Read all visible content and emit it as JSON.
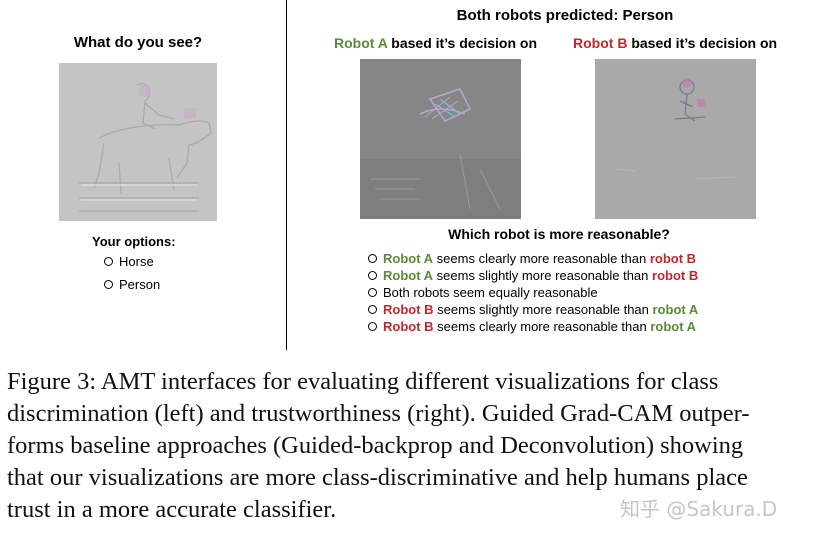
{
  "left": {
    "title": "What do you see?",
    "options_label": "Your options:",
    "options": [
      "Horse",
      "Person"
    ]
  },
  "right": {
    "title": "Both robots predicted: Person",
    "robot_a": {
      "name": "Robot A",
      "suffix": " based it’s decision on"
    },
    "robot_b": {
      "name": "Robot B",
      "suffix": " based it’s decision on"
    },
    "question": "Which robot is more reasonable?",
    "choices": [
      {
        "first": "Robot A",
        "mid": " seems clearly more reasonable than ",
        "last": "robot B"
      },
      {
        "first": "Robot A",
        "mid": " seems slightly more reasonable than ",
        "last": "robot B"
      },
      {
        "first": "",
        "mid": "Both robots seem equally reasonable",
        "last": ""
      },
      {
        "first": "Robot B",
        "mid": " seems slightly more reasonable than ",
        "last": "robot A"
      },
      {
        "first": "Robot B",
        "mid": " seems clearly more reasonable than ",
        "last": "robot A"
      }
    ]
  },
  "caption": {
    "lines": [
      "Figure 3: AMT interfaces for evaluating different visualizations for class",
      "discrimination (left) and trustworthiness (right). Guided Grad-CAM outper-",
      "forms baseline approaches (Guided-backprop and Deconvolution) showing",
      "that our visualizations are more class-discriminative and help humans place",
      "trust in a more accurate classifier."
    ]
  },
  "watermark": "知乎 @Sakura.D",
  "colors": {
    "robot_a": "#5a8a3a",
    "robot_b": "#c0272d",
    "image_gray": "#8a8a8a"
  }
}
